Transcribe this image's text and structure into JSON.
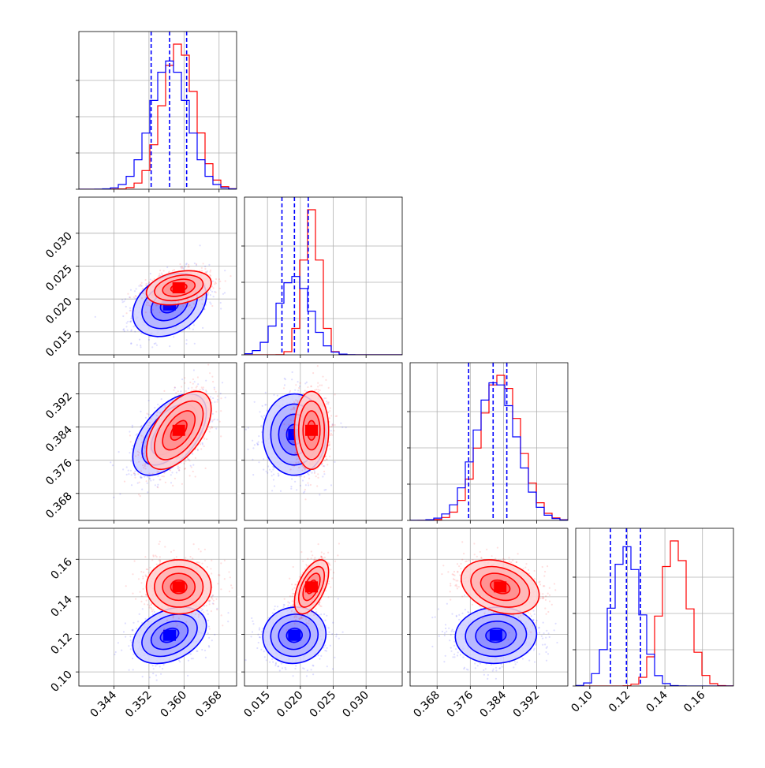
{
  "chart_data": {
    "type": "corner",
    "description_free": true,
    "parameters": [
      {
        "xlim": [
          0.336,
          0.372
        ],
        "ticks": [
          0.344,
          0.352,
          0.36,
          0.368
        ],
        "tick_labels": [
          "0.344",
          "0.352",
          "0.360",
          "0.368"
        ]
      },
      {
        "xlim": [
          0.0115,
          0.0355
        ],
        "ticks": [
          0.015,
          0.02,
          0.025,
          0.03
        ],
        "tick_labels": [
          "0.015",
          "0.020",
          "0.025",
          "0.030"
        ]
      },
      {
        "xlim": [
          0.3615,
          0.3995
        ],
        "ticks": [
          0.368,
          0.376,
          0.384,
          0.392
        ],
        "tick_labels": [
          "0.368",
          "0.376",
          "0.384",
          "0.392"
        ]
      },
      {
        "xlim": [
          0.0925,
          0.1765
        ],
        "ticks": [
          0.1,
          0.12,
          0.14,
          0.16
        ],
        "tick_labels": [
          "0.10",
          "0.12",
          "0.14",
          "0.16"
        ]
      }
    ],
    "series": [
      {
        "color": "#0000ff",
        "means": [
          0.3567,
          0.0191,
          0.3822,
          0.1195
        ],
        "sigmas": [
          0.0042,
          0.0024,
          0.0049,
          0.0075
        ],
        "quantiles": [
          [
            0.3525,
            0.3567,
            0.3606
          ],
          [
            0.0172,
            0.0191,
            0.0212
          ],
          [
            0.3756,
            0.3815,
            0.3848
          ],
          [
            0.111,
            0.1195,
            0.127
          ]
        ],
        "correlations": {
          "1-0": 0.3,
          "2-0": 0.55,
          "2-1": 0.0,
          "3-0": 0.35,
          "3-1": 0.05,
          "3-2": 0.05
        }
      },
      {
        "color": "#ff0000",
        "means": [
          0.3588,
          0.0217,
          0.3832,
          0.1453
        ],
        "sigmas": [
          0.0037,
          0.0013,
          0.0047,
          0.0072
        ],
        "correlations": {
          "1-0": 0.3,
          "2-0": 0.55,
          "2-1": 0.0,
          "3-0": 0.0,
          "3-1": 0.55,
          "3-2": -0.3
        }
      }
    ],
    "grid": true
  }
}
